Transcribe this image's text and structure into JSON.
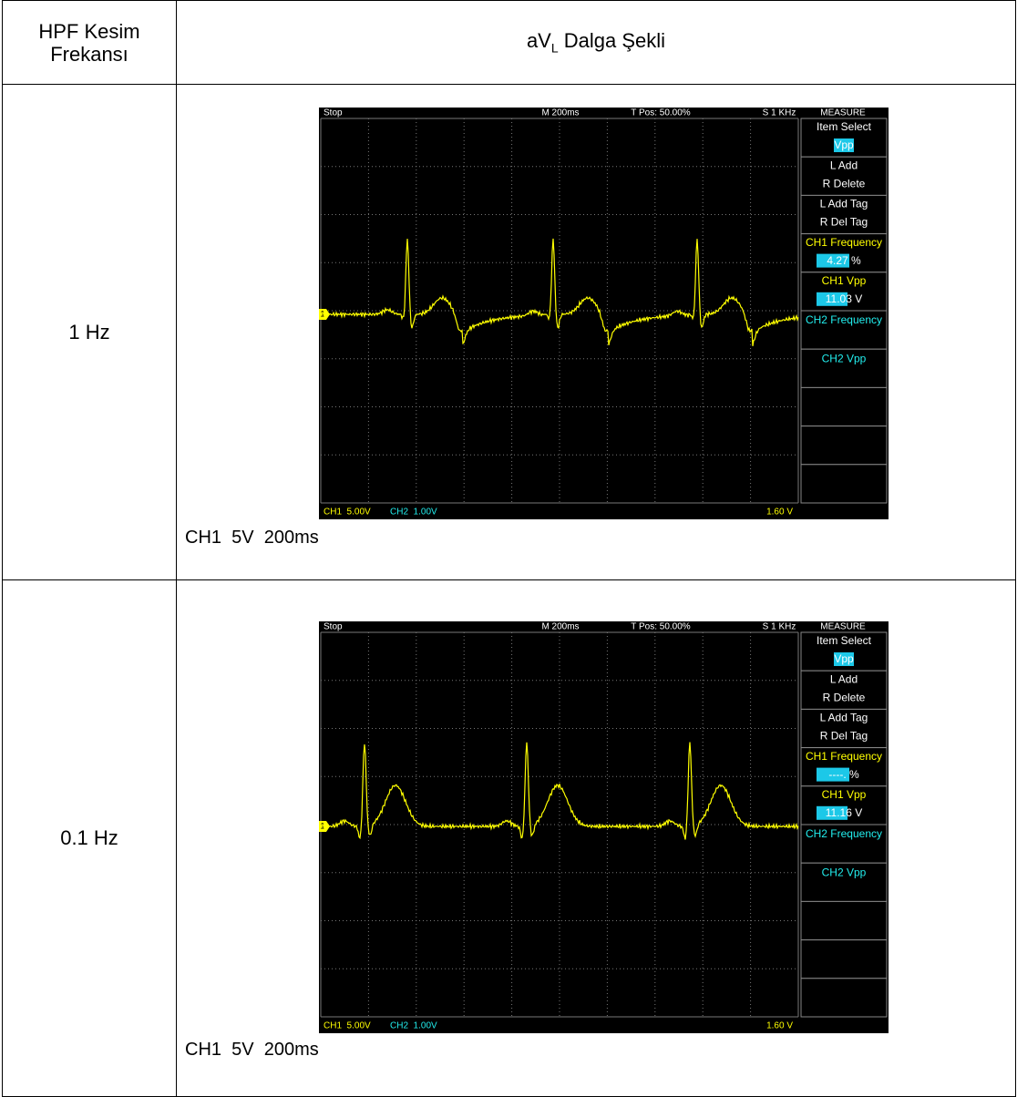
{
  "header": {
    "col1": "HPF Kesim Frekansı",
    "col2": {
      "main": "aV",
      "sub": "L",
      "rest": " Dalga Şekli"
    }
  },
  "rows": [
    {
      "label": "1 Hz",
      "scope": {
        "status": "Stop",
        "timebase": "M 200ms",
        "tpos": "T Pos: 50.00%",
        "sample": "S 1 KHz",
        "menu_title": "MEASURE",
        "menu": [
          [
            "Item Select",
            "Vpp"
          ],
          [
            "L Add",
            "R Delete"
          ],
          [
            "L Add Tag",
            "R Del Tag"
          ],
          [
            "CH1 Frequency",
            "4.27 %"
          ],
          [
            "CH1 Vpp",
            "11.03 V"
          ],
          [
            "CH2 Frequency"
          ],
          [
            "CH2 Vpp"
          ]
        ],
        "ch1": "CH1  5.00V",
        "ch2": "CH2  1.00V",
        "trigger": "1.60 V",
        "marker": "1"
      },
      "caption": "CH1  5V  200ms"
    },
    {
      "label": "0.1 Hz",
      "scope": {
        "status": "Stop",
        "timebase": "M 200ms",
        "tpos": "T Pos: 50.00%",
        "sample": "S 1 KHz",
        "menu_title": "MEASURE",
        "menu": [
          [
            "Item Select",
            "Vpp"
          ],
          [
            "L Add",
            "R Delete"
          ],
          [
            "L Add Tag",
            "R Del Tag"
          ],
          [
            "CH1 Frequency",
            "----. %"
          ],
          [
            "CH1 Vpp",
            "11.16 V"
          ],
          [
            "CH2 Frequency"
          ],
          [
            "CH2 Vpp"
          ]
        ],
        "ch1": "CH1  5.00V",
        "ch2": "CH2  1.00V",
        "trigger": "1.60 V",
        "marker": "1"
      },
      "caption": "CH1  5V  200ms"
    }
  ]
}
